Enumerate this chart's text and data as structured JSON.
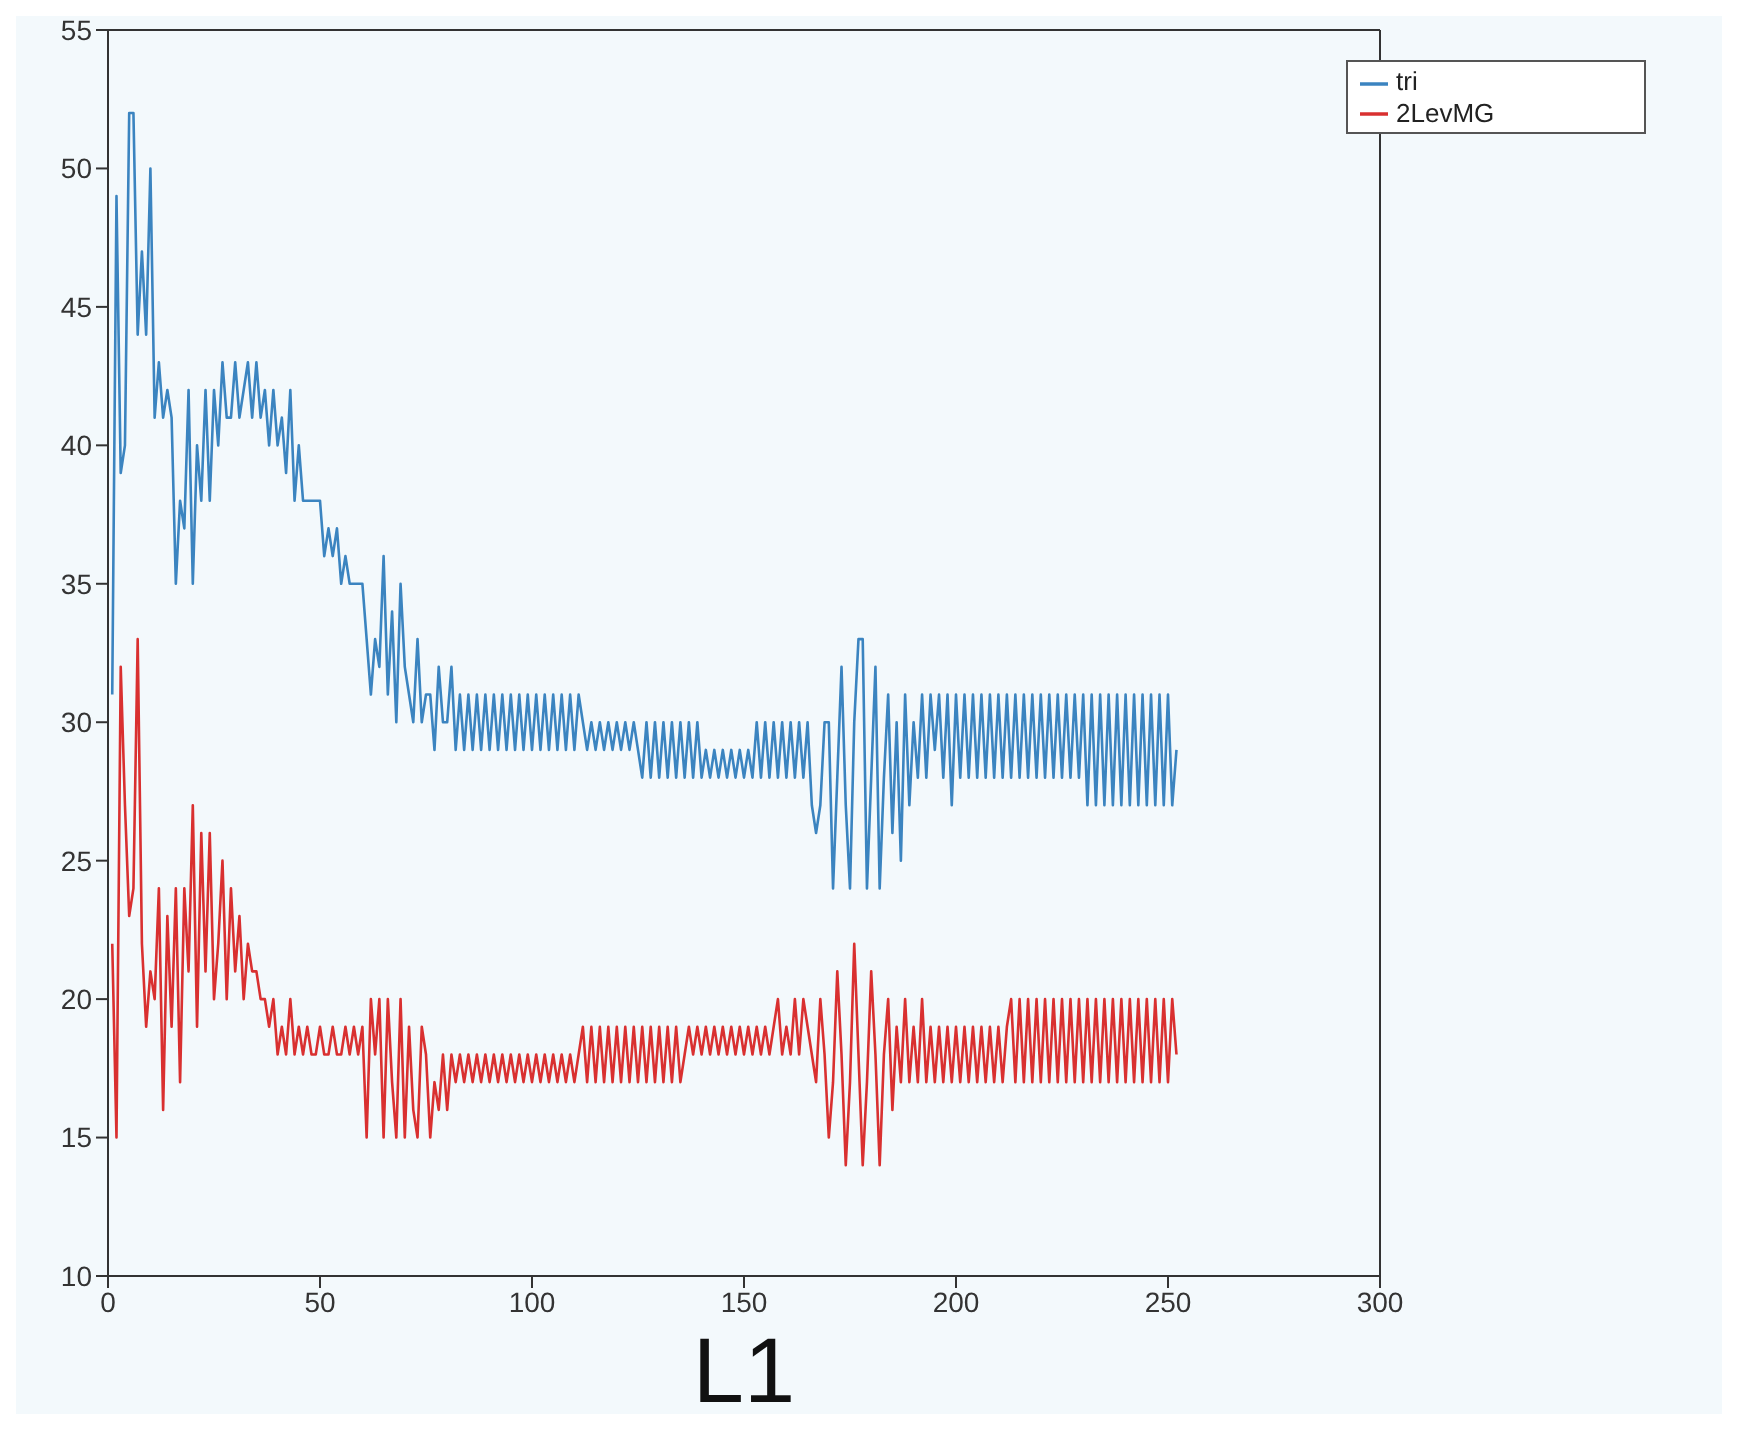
{
  "chart_data": {
    "type": "line",
    "xlabel": "L1",
    "xlim": [
      0,
      300
    ],
    "xticks": [
      0,
      50,
      100,
      150,
      200,
      250,
      300
    ],
    "ylim": [
      10,
      55
    ],
    "yticks": [
      10,
      15,
      20,
      25,
      30,
      35,
      40,
      45,
      50,
      55
    ],
    "legend": "top right",
    "marker": "none",
    "line_style": "solid",
    "x": [
      1,
      2,
      3,
      4,
      5,
      6,
      7,
      8,
      9,
      10,
      11,
      12,
      13,
      14,
      15,
      16,
      17,
      18,
      19,
      20,
      21,
      22,
      23,
      24,
      25,
      26,
      27,
      28,
      29,
      30,
      31,
      32,
      33,
      34,
      35,
      36,
      37,
      38,
      39,
      40,
      41,
      42,
      43,
      44,
      45,
      46,
      47,
      48,
      49,
      50,
      51,
      52,
      53,
      54,
      55,
      56,
      57,
      58,
      59,
      60,
      61,
      62,
      63,
      64,
      65,
      66,
      67,
      68,
      69,
      70,
      71,
      72,
      73,
      74,
      75,
      76,
      77,
      78,
      79,
      80,
      81,
      82,
      83,
      84,
      85,
      86,
      87,
      88,
      89,
      90,
      91,
      92,
      93,
      94,
      95,
      96,
      97,
      98,
      99,
      100,
      101,
      102,
      103,
      104,
      105,
      106,
      107,
      108,
      109,
      110,
      111,
      112,
      113,
      114,
      115,
      116,
      117,
      118,
      119,
      120,
      121,
      122,
      123,
      124,
      125,
      126,
      127,
      128,
      129,
      130,
      131,
      132,
      133,
      134,
      135,
      136,
      137,
      138,
      139,
      140,
      141,
      142,
      143,
      144,
      145,
      146,
      147,
      148,
      149,
      150,
      151,
      152,
      153,
      154,
      155,
      156,
      157,
      158,
      159,
      160,
      161,
      162,
      163,
      164,
      165,
      166,
      167,
      168,
      169,
      170,
      171,
      172,
      173,
      174,
      175,
      176,
      177,
      178,
      179,
      180,
      181,
      182,
      183,
      184,
      185,
      186,
      187,
      188,
      189,
      190,
      191,
      192,
      193,
      194,
      195,
      196,
      197,
      198,
      199,
      200,
      201,
      202,
      203,
      204,
      205,
      206,
      207,
      208,
      209,
      210,
      211,
      212,
      213,
      214,
      215,
      216,
      217,
      218,
      219,
      220,
      221,
      222,
      223,
      224,
      225,
      226,
      227,
      228,
      229,
      230,
      231,
      232,
      233,
      234,
      235,
      236,
      237,
      238,
      239,
      240,
      241,
      242,
      243,
      244,
      245,
      246,
      247,
      248,
      249,
      250,
      251,
      252
    ],
    "series": [
      {
        "name": "tri",
        "color": "#3b84c0",
        "values": [
          31,
          49,
          39,
          40,
          52,
          52,
          44,
          47,
          44,
          50,
          41,
          43,
          41,
          42,
          41,
          35,
          38,
          37,
          42,
          35,
          40,
          38,
          42,
          38,
          42,
          40,
          43,
          41,
          41,
          43,
          41,
          42,
          43,
          41,
          43,
          41,
          42,
          40,
          42,
          40,
          41,
          39,
          42,
          38,
          40,
          38,
          38,
          38,
          38,
          38,
          36,
          37,
          36,
          37,
          35,
          36,
          35,
          35,
          35,
          35,
          33,
          31,
          33,
          32,
          36,
          31,
          34,
          30,
          35,
          32,
          31,
          30,
          33,
          30,
          31,
          31,
          29,
          32,
          30,
          30,
          32,
          29,
          31,
          29,
          31,
          29,
          31,
          29,
          31,
          29,
          31,
          29,
          31,
          29,
          31,
          29,
          31,
          29,
          31,
          29,
          31,
          29,
          31,
          29,
          31,
          29,
          31,
          29,
          31,
          29,
          31,
          30,
          29,
          30,
          29,
          30,
          29,
          30,
          29,
          30,
          29,
          30,
          29,
          30,
          29,
          28,
          30,
          28,
          30,
          28,
          30,
          28,
          30,
          28,
          30,
          28,
          30,
          28,
          30,
          28,
          29,
          28,
          29,
          28,
          29,
          28,
          29,
          28,
          29,
          28,
          29,
          28,
          30,
          28,
          30,
          28,
          30,
          28,
          30,
          28,
          30,
          28,
          30,
          28,
          30,
          27,
          26,
          27,
          30,
          30,
          24,
          28,
          32,
          27,
          24,
          30,
          33,
          33,
          24,
          28,
          32,
          24,
          28,
          31,
          26,
          30,
          25,
          31,
          27,
          30,
          28,
          31,
          28,
          31,
          29,
          31,
          28,
          31,
          27,
          31,
          28,
          31,
          28,
          31,
          28,
          31,
          28,
          31,
          28,
          31,
          28,
          31,
          28,
          31,
          28,
          31,
          28,
          31,
          28,
          31,
          28,
          31,
          28,
          31,
          28,
          31,
          28,
          31,
          28,
          31,
          27,
          31,
          27,
          31,
          27,
          31,
          27,
          31,
          27,
          31,
          27,
          31,
          27,
          31,
          27,
          31,
          27,
          31,
          27,
          31,
          27,
          29
        ]
      },
      {
        "name": "2LevMG",
        "color": "#d93030",
        "values": [
          22,
          15,
          32,
          27,
          23,
          24,
          33,
          22,
          19,
          21,
          20,
          24,
          16,
          23,
          19,
          24,
          17,
          24,
          21,
          27,
          19,
          26,
          21,
          26,
          20,
          22,
          25,
          20,
          24,
          21,
          23,
          20,
          22,
          21,
          21,
          20,
          20,
          19,
          20,
          18,
          19,
          18,
          20,
          18,
          19,
          18,
          19,
          18,
          18,
          19,
          18,
          18,
          19,
          18,
          18,
          19,
          18,
          19,
          18,
          19,
          15,
          20,
          18,
          20,
          15,
          20,
          17,
          15,
          20,
          15,
          19,
          16,
          15,
          19,
          18,
          15,
          17,
          16,
          18,
          16,
          18,
          17,
          18,
          17,
          18,
          17,
          18,
          17,
          18,
          17,
          18,
          17,
          18,
          17,
          18,
          17,
          18,
          17,
          18,
          17,
          18,
          17,
          18,
          17,
          18,
          17,
          18,
          17,
          18,
          17,
          18,
          19,
          17,
          19,
          17,
          19,
          17,
          19,
          17,
          19,
          17,
          19,
          17,
          19,
          17,
          19,
          17,
          19,
          17,
          19,
          17,
          19,
          17,
          19,
          17,
          18,
          19,
          18,
          19,
          18,
          19,
          18,
          19,
          18,
          19,
          18,
          19,
          18,
          19,
          18,
          19,
          18,
          19,
          18,
          19,
          18,
          19,
          20,
          18,
          19,
          18,
          20,
          18,
          20,
          19,
          18,
          17,
          20,
          18,
          15,
          17,
          21,
          18,
          14,
          17,
          22,
          18,
          14,
          17,
          21,
          18,
          14,
          18,
          20,
          16,
          19,
          17,
          20,
          17,
          19,
          17,
          20,
          17,
          19,
          17,
          19,
          17,
          19,
          17,
          19,
          17,
          19,
          17,
          19,
          17,
          19,
          17,
          19,
          17,
          19,
          17,
          19,
          20,
          17,
          20,
          17,
          20,
          17,
          20,
          17,
          20,
          17,
          20,
          17,
          20,
          17,
          20,
          17,
          20,
          17,
          20,
          17,
          20,
          17,
          20,
          17,
          20,
          17,
          20,
          17,
          20,
          17,
          20,
          17,
          20,
          17,
          20,
          17,
          20,
          17,
          20,
          18
        ]
      }
    ]
  }
}
